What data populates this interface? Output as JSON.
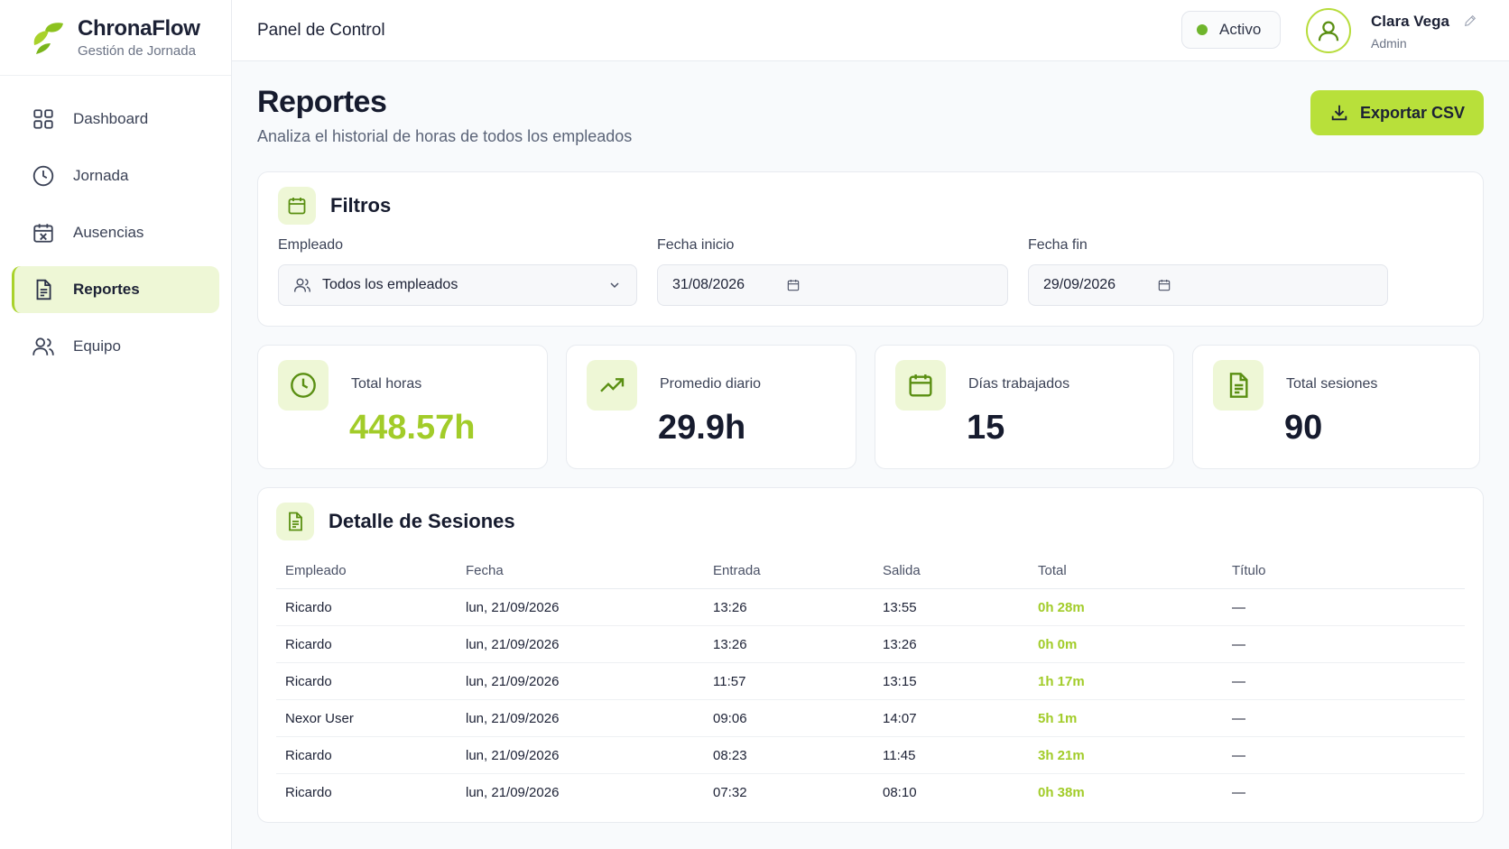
{
  "brand": {
    "name": "ChronaFlow",
    "subtitle": "Gestión de Jornada",
    "accent": "#a9d22b"
  },
  "sidebar": {
    "items": [
      {
        "label": "Dashboard",
        "icon": "grid-icon",
        "active": false
      },
      {
        "label": "Jornada",
        "icon": "clock-icon",
        "active": false
      },
      {
        "label": "Ausencias",
        "icon": "calendar-off-icon",
        "active": false
      },
      {
        "label": "Reportes",
        "icon": "document-icon",
        "active": true
      },
      {
        "label": "Equipo",
        "icon": "users-icon",
        "active": false
      }
    ]
  },
  "topbar": {
    "title": "Panel de Control",
    "status": "Activo",
    "status_color": "#6fb52c",
    "user": {
      "name": "Clara Vega",
      "role": "Admin"
    }
  },
  "page": {
    "title": "Reportes",
    "subtitle": "Analiza el historial de horas de todos los empleados",
    "export_label": "Exportar CSV"
  },
  "filters": {
    "title": "Filtros",
    "employee": {
      "label": "Empleado",
      "value": "Todos los empleados"
    },
    "start_date": {
      "label": "Fecha inicio",
      "value": "31/08/2026"
    },
    "end_date": {
      "label": "Fecha fin",
      "value": "29/09/2026"
    }
  },
  "stats": [
    {
      "label": "Total horas",
      "value": "448.57h",
      "icon": "clock-icon"
    },
    {
      "label": "Promedio diario",
      "value": "29.9h",
      "icon": "trending-up-icon"
    },
    {
      "label": "Días trabajados",
      "value": "15",
      "icon": "calendar-icon"
    },
    {
      "label": "Total sesiones",
      "value": "90",
      "icon": "document-icon"
    }
  ],
  "sessions": {
    "title": "Detalle de Sesiones",
    "columns": [
      "Empleado",
      "Fecha",
      "Entrada",
      "Salida",
      "Total",
      "Título"
    ],
    "rows": [
      {
        "employee": "Ricardo",
        "date": "lun, 21/09/2026",
        "in": "13:26",
        "out": "13:55",
        "total": "0h 28m",
        "title": "—"
      },
      {
        "employee": "Ricardo",
        "date": "lun, 21/09/2026",
        "in": "13:26",
        "out": "13:26",
        "total": "0h 0m",
        "title": "—"
      },
      {
        "employee": "Ricardo",
        "date": "lun, 21/09/2026",
        "in": "11:57",
        "out": "13:15",
        "total": "1h 17m",
        "title": "—"
      },
      {
        "employee": "Nexor User",
        "date": "lun, 21/09/2026",
        "in": "09:06",
        "out": "14:07",
        "total": "5h 1m",
        "title": "—"
      },
      {
        "employee": "Ricardo",
        "date": "lun, 21/09/2026",
        "in": "08:23",
        "out": "11:45",
        "total": "3h 21m",
        "title": "—"
      },
      {
        "employee": "Ricardo",
        "date": "lun, 21/09/2026",
        "in": "07:32",
        "out": "08:10",
        "total": "0h 38m",
        "title": "—"
      }
    ]
  }
}
